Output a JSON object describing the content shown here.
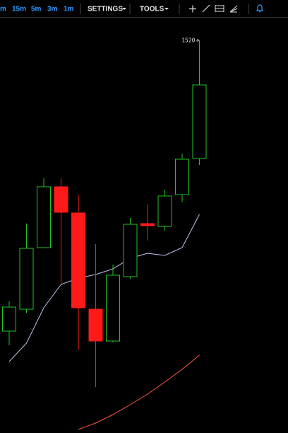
{
  "toolbar": {
    "intervals": [
      "m",
      "15m",
      "5m",
      "3m",
      "1m"
    ],
    "menus": [
      "SETTINGS",
      "TOOLS"
    ]
  },
  "chart_data": {
    "type": "candlestick",
    "open": [
      1478.9,
      1482.0,
      1490.7,
      1499.3,
      1495.6,
      1482.0,
      1477.5,
      1486.6,
      1494.1,
      1493.7,
      1498.2,
      1503.3
    ],
    "high": [
      1483.1,
      1494.1,
      1500.5,
      1500.5,
      1498.2,
      1491.2,
      1488.3,
      1494.9,
      1496.8,
      1498.9,
      1504.0,
      1520
    ],
    "low": [
      1476.9,
      1481.5,
      1490.7,
      1485.5,
      1476.2,
      1471.0,
      1477.3,
      1486.3,
      1491.7,
      1493.1,
      1497.1,
      1502.4
    ],
    "close": [
      1482.3,
      1490.6,
      1499.3,
      1495.7,
      1482.2,
      1477.5,
      1486.8,
      1494.0,
      1493.8,
      1498.0,
      1503.2,
      1513.7
    ],
    "up_color": "#22c322",
    "down_color": "#ff1a1a",
    "series": [
      {
        "color": "#c4c4ee",
        "values": [
          1474.6,
          1477.2,
          1482.2,
          1485.5,
          1486.4,
          1486.9,
          1487.7,
          1489.2,
          1489.9,
          1489.6,
          1490.7,
          1495.4
        ]
      },
      {
        "color": "#ff5a48",
        "values": [
          null,
          null,
          null,
          null,
          1465.0,
          1465.9,
          1467.1,
          1468.5,
          1470.0,
          1471.7,
          1473.5,
          1475.5
        ]
      }
    ],
    "ylim": [
      1464.5,
      1522.9
    ]
  }
}
